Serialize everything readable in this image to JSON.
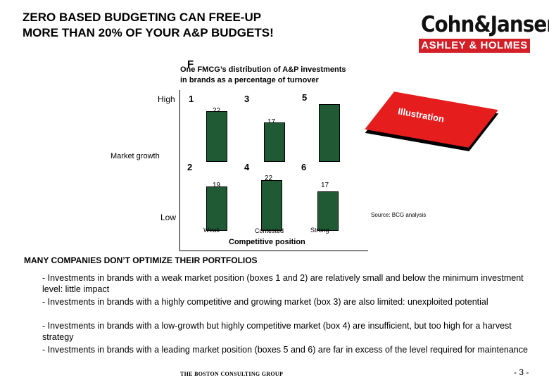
{
  "slide": {
    "title_line1": "ZERO BASED BUDGETING CAN FREE-UP",
    "title_line2": "MORE THAN 20% OF YOUR A&P BUDGETS!",
    "logo_top": "Cohn&Jansen",
    "logo_bottom": "ASHLEY & HOLMES"
  },
  "matrix": {
    "title_letter": "F",
    "title_line1": "One FMCG’s distribution of A&P investments",
    "title_line2": "in brands as a percentage of turnover",
    "y_high": "High",
    "y_label": "Market growth",
    "y_low": "Low",
    "x_weak": "Weak",
    "x_contested": "Contested",
    "x_strong": "Strong",
    "x_label": "Competitive position",
    "boxes": [
      {
        "no": "1",
        "value": "22"
      },
      {
        "no": "3",
        "value": "17"
      },
      {
        "no": "5",
        "value": "25"
      },
      {
        "no": "2",
        "value": "19"
      },
      {
        "no": "4",
        "value": "22"
      },
      {
        "no": "6",
        "value": "17"
      }
    ],
    "illustration": "Illustration",
    "source": "Source: BCG analysis"
  },
  "chart_data": {
    "type": "bar",
    "categories": [
      "1",
      "3",
      "5",
      "2",
      "4",
      "6"
    ],
    "values": [
      22,
      17,
      25,
      19,
      22,
      17
    ],
    "xlabel": "Competitive position",
    "ylabel": "Market growth"
  },
  "body": {
    "subheading": "MANY COMPANIES DON’T OPTIMIZE THEIR PORTFOLIOS",
    "bullets": [
      "- Investments in brands with a weak market position (boxes 1 and 2) are relatively small and below the minimum investment level: little impact",
      "- Investments in brands with a highly competitive and growing market (box 3) are also limited: unexploited potential",
      "- Investments in brands with a low-growth but highly competitive market (box 4) are insufficient, but too high for a harvest strategy",
      "- Investments in brands with a leading market position (boxes 5 and 6) are far in excess of the level required for maintenance"
    ]
  },
  "footer": {
    "left": "THE BOSTON CONSULTING GROUP",
    "page": "- 3 -"
  }
}
